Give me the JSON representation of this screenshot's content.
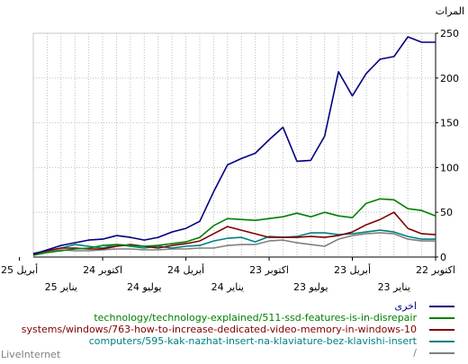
{
  "chart_data": {
    "type": "line",
    "ylabel": "المرات",
    "ylim": [
      0,
      250
    ],
    "yticks": [
      0,
      50,
      100,
      150,
      200,
      250
    ],
    "x_tick_top": [
      "اكتوبر 22",
      "أبريل 23",
      "اكتوبر 23",
      "أبريل 24",
      "اكتوبر 24",
      "أبريل 25"
    ],
    "x_tick_bottom": [
      "يناير 23",
      "يوليو 23",
      "يناير 24",
      "يوليو 24",
      "يناير 25"
    ],
    "grid": true,
    "series": [
      {
        "name": "اخرى",
        "color": "#000080",
        "values": [
          240,
          240,
          246,
          224,
          221,
          205,
          180,
          207,
          135,
          108,
          107,
          145,
          131,
          116,
          110,
          103,
          73,
          40,
          32,
          28,
          22,
          19,
          22,
          24,
          20,
          19,
          16,
          13,
          8,
          3
        ]
      },
      {
        "name": "technology/technology-explained/511-ssd-features-is-in-disrepair",
        "color": "#008000",
        "values": [
          46,
          52,
          54,
          64,
          65,
          60,
          44,
          46,
          50,
          45,
          49,
          45,
          43,
          41,
          42,
          43,
          35,
          22,
          17,
          15,
          13,
          12,
          13,
          14,
          13,
          10,
          9,
          7,
          5,
          2
        ]
      },
      {
        "name": "systems/windows/763-how-to-increase-dedicated-video-memory-in-windows-10",
        "color": "#800000",
        "values": [
          25,
          26,
          32,
          50,
          42,
          36,
          28,
          24,
          22,
          23,
          22,
          22,
          22,
          26,
          30,
          34,
          26,
          18,
          15,
          13,
          10,
          12,
          14,
          12,
          9,
          9,
          10,
          10,
          7,
          4
        ]
      },
      {
        "name": "computers/595-kak-nazhat-insert-na-klaviature-bez-klavishi-insert",
        "color": "#008080",
        "values": [
          20,
          20,
          23,
          28,
          30,
          28,
          26,
          25,
          27,
          27,
          23,
          22,
          23,
          17,
          22,
          21,
          18,
          13,
          12,
          10,
          12,
          10,
          12,
          14,
          10,
          12,
          14,
          10,
          7,
          4
        ]
      },
      {
        "name": "/",
        "color": "#808080",
        "values": [
          18,
          18,
          20,
          26,
          27,
          26,
          24,
          20,
          12,
          14,
          16,
          19,
          18,
          14,
          14,
          13,
          10,
          10,
          9,
          9,
          8,
          8,
          9,
          9,
          8,
          7,
          7,
          8,
          6,
          3
        ]
      }
    ]
  },
  "brand": "LiveInternet"
}
